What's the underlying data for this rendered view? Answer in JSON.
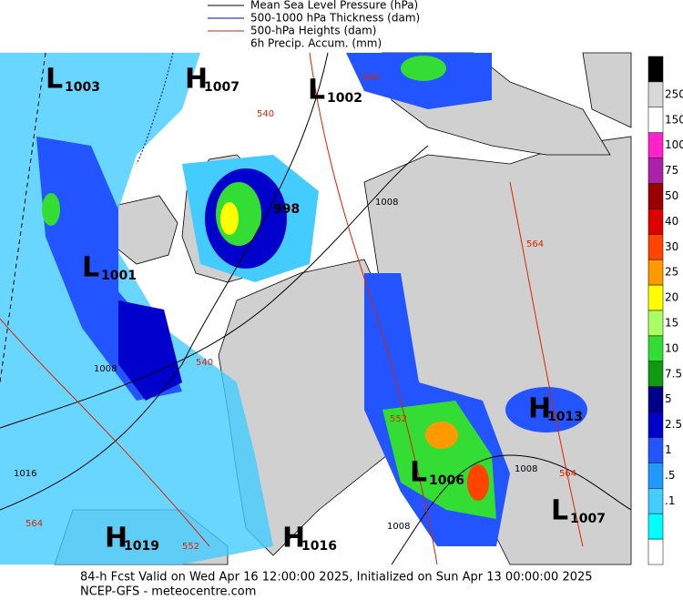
{
  "legend": {
    "items": [
      {
        "name": "Mean Sea Level Pressure (hPa)",
        "color": "#000000"
      },
      {
        "name": "500-1000 hPa Thickness (dam)",
        "color": "#0000cc"
      },
      {
        "name": "500-hPa Heights (dam)",
        "color": "#dd2200"
      },
      {
        "name": "6h Precip. Accum. (mm)",
        "color": null
      }
    ]
  },
  "colorbar": {
    "colors": [
      "#000000",
      "#d8d8d8",
      "#ffffff",
      "#ff22cc",
      "#aa22aa",
      "#990000",
      "#dd0000",
      "#ff4400",
      "#ff9900",
      "#ffff00",
      "#aaff66",
      "#33dd33",
      "#119911",
      "#000088",
      "#0000cc",
      "#2255ff",
      "#2299ff",
      "#44ccff",
      "#00ffff",
      "#ffffff"
    ],
    "labels": [
      "250",
      "150",
      "100",
      "75",
      "50",
      "40",
      "30",
      "25",
      "20",
      "15",
      "10",
      "7.5",
      "5",
      "2.5",
      "1",
      ".5",
      ".1"
    ]
  },
  "centers": [
    {
      "letter": "L",
      "value": "1003"
    },
    {
      "letter": "H",
      "value": "1007"
    },
    {
      "letter": "L",
      "value": "1002"
    },
    {
      "letter": null,
      "value": "998"
    },
    {
      "letter": "L",
      "value": "1001"
    },
    {
      "letter": "H",
      "value": "1013"
    },
    {
      "letter": "L",
      "value": "1006"
    },
    {
      "letter": "L",
      "value": "1007"
    },
    {
      "letter": "H",
      "value": "1019"
    },
    {
      "letter": "H",
      "value": "1016"
    }
  ],
  "contour_labels": [
    "1008",
    "1008",
    "1008",
    "1008",
    "1016",
    "564",
    "564",
    "564",
    "564",
    "552",
    "552",
    "540",
    "540"
  ],
  "footer": {
    "line1": "84-h Fcst Valid on Wed Apr 16 12:00:00 2025, Initialized on Sun Apr 13 00:00:00 2025",
    "line2": "NCEP-GFS  - meteocentre.com"
  }
}
